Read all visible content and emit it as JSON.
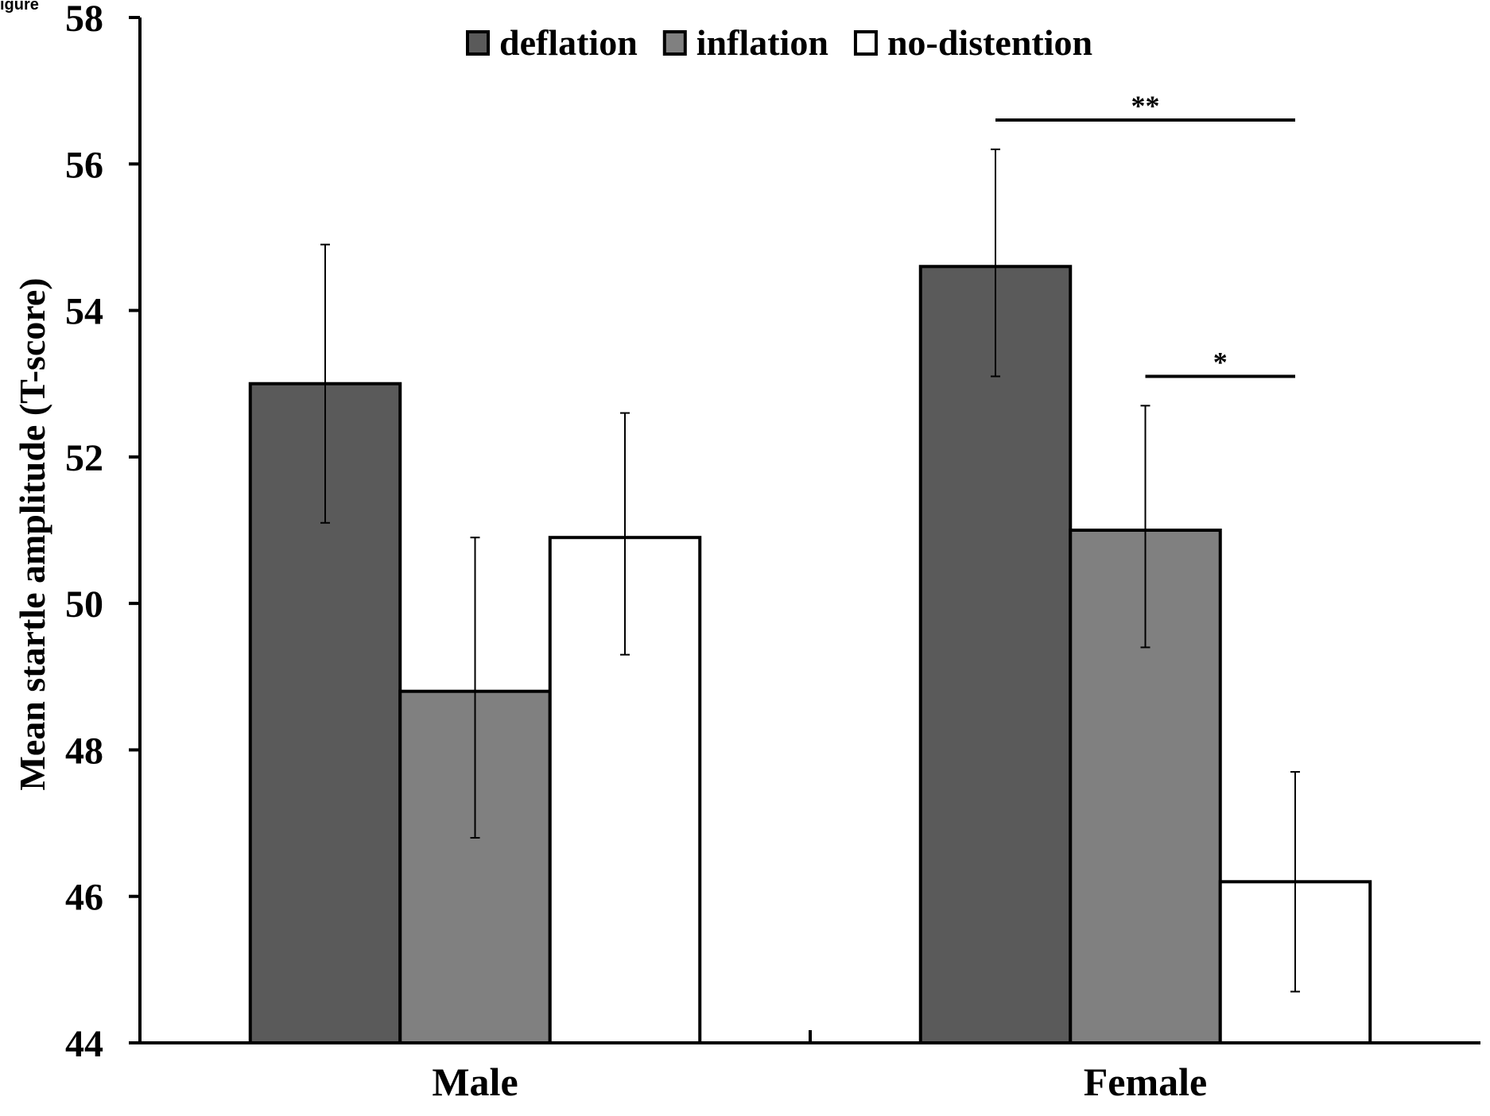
{
  "corner_label": "igure",
  "chart_data": {
    "type": "bar",
    "title": "",
    "xlabel": "",
    "ylabel": "Mean startle amplitude (T-score)",
    "ylim": [
      44,
      58
    ],
    "yticks": [
      44,
      46,
      48,
      50,
      52,
      54,
      56,
      58
    ],
    "categories": [
      "Male",
      "Female"
    ],
    "legend_position": "top",
    "grid": false,
    "series": [
      {
        "name": "deflation",
        "color": "#5a5a5a",
        "values": [
          53.0,
          54.6
        ],
        "error_low": [
          51.1,
          53.1
        ],
        "error_high": [
          54.9,
          56.2
        ]
      },
      {
        "name": "inflation",
        "color": "#808080",
        "values": [
          48.8,
          51.0
        ],
        "error_low": [
          46.8,
          49.4
        ],
        "error_high": [
          50.9,
          52.7
        ]
      },
      {
        "name": "no-distention",
        "color": "#ffffff",
        "values": [
          50.9,
          46.2
        ],
        "error_low": [
          49.3,
          44.7
        ],
        "error_high": [
          52.6,
          47.7
        ]
      }
    ],
    "annotations": [
      {
        "label": "**",
        "category": "Female",
        "from_series": "deflation",
        "to_series": "no-distention",
        "y": 56.6
      },
      {
        "label": "*",
        "category": "Female",
        "from_series": "inflation",
        "to_series": "no-distention",
        "y": 53.1
      }
    ]
  }
}
